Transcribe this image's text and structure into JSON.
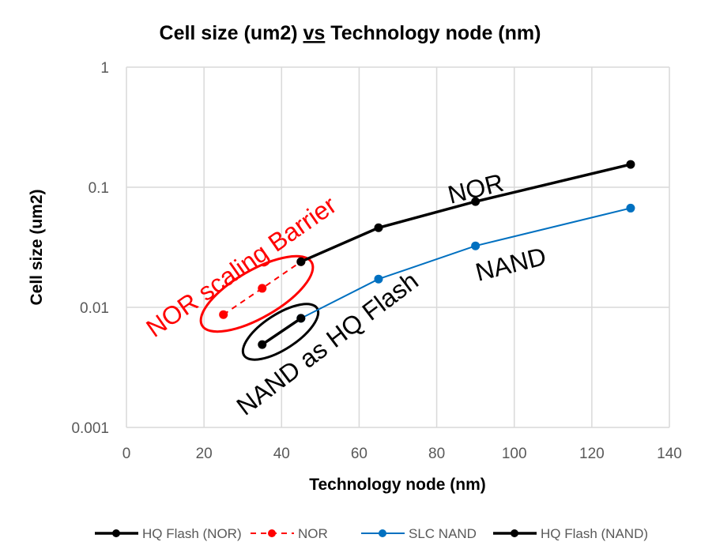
{
  "chart_data": {
    "type": "line",
    "title_parts": [
      "Cell size (um2) ",
      "vs",
      " Technology node (nm)"
    ],
    "xlabel": "Technology node (nm)",
    "ylabel": "Cell size (um2)",
    "xlim": [
      0,
      140
    ],
    "ylim": [
      0.001,
      1
    ],
    "yscale": "log",
    "xticks": [
      "0",
      "20",
      "40",
      "60",
      "80",
      "100",
      "120",
      "140"
    ],
    "yticks": [
      "0.001",
      "0.01",
      "0.1",
      "1"
    ],
    "grid": true,
    "legend_position": "bottom",
    "series": [
      {
        "name": "HQ Flash (NOR)",
        "color": "#000000",
        "style": "solid-thick",
        "x": [
          45,
          65,
          90,
          130
        ],
        "y": [
          0.024,
          0.046,
          0.076,
          0.155
        ]
      },
      {
        "name": "NOR",
        "color": "#ff0000",
        "style": "dashed",
        "x": [
          25,
          35,
          45
        ],
        "y": [
          0.0087,
          0.0144,
          0.024
        ]
      },
      {
        "name": "SLC NAND",
        "color": "#0070c0",
        "style": "solid",
        "x": [
          45,
          65,
          90,
          130
        ],
        "y": [
          0.0081,
          0.0172,
          0.0325,
          0.067
        ]
      },
      {
        "name": "HQ Flash (NAND)",
        "color": "#000000",
        "style": "solid-thick",
        "x": [
          35,
          45
        ],
        "y": [
          0.0049,
          0.0081
        ]
      }
    ],
    "annotations": [
      {
        "text": "NOR scaling Barrier",
        "color": "#ff0000"
      },
      {
        "text": "NOR",
        "color": "#000000"
      },
      {
        "text": "NAND",
        "color": "#000000"
      },
      {
        "text": "NAND as HQ Flash",
        "color": "#000000"
      }
    ]
  }
}
